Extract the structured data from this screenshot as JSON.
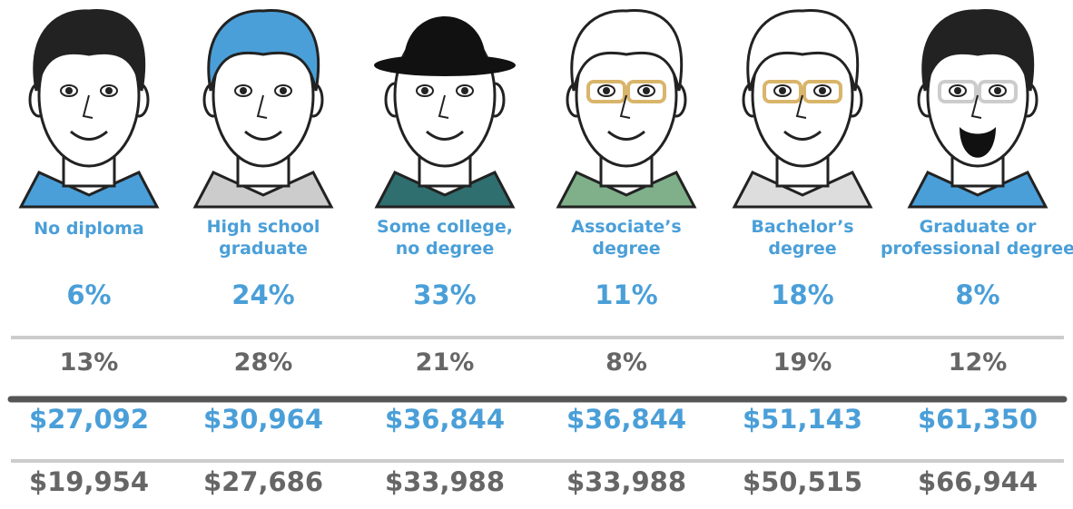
{
  "columns": [
    {
      "label": [
        "No diploma"
      ],
      "values": [
        "6%",
        "13%",
        "$27,092",
        "$19,954"
      ]
    },
    {
      "label": [
        "High school",
        "graduate"
      ],
      "values": [
        "24%",
        "28%",
        "$30,964",
        "$27,686"
      ]
    },
    {
      "label": [
        "Some college,",
        "no degree"
      ],
      "values": [
        "33%",
        "21%",
        "$36,844",
        "$33,988"
      ]
    },
    {
      "label": [
        "Associate’s",
        "degree"
      ],
      "values": [
        "11%",
        "8%",
        "$36,844",
        "$33,988"
      ]
    },
    {
      "label": [
        "Bachelor’s",
        "degree"
      ],
      "values": [
        "18%",
        "19%",
        "$51,143",
        "$50,515"
      ]
    },
    {
      "label": [
        "Graduate or",
        "professional degree"
      ],
      "values": [
        "8%",
        "12%",
        "$61,350",
        "$66,944"
      ]
    }
  ]
}
